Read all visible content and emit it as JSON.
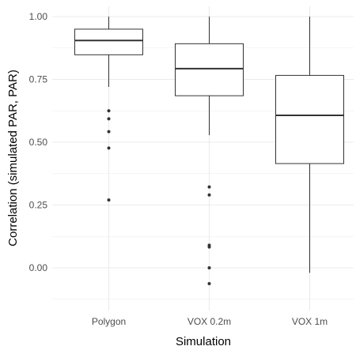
{
  "chart_data": {
    "type": "box",
    "title": "",
    "xlabel": "Simulation",
    "ylabel": "Correlation (simulated PAR, PAR)",
    "ylim": [
      -0.15,
      1.0
    ],
    "yticks": [
      "0.00",
      "0.25",
      "0.50",
      "0.75",
      "1.00"
    ],
    "ytick_values": [
      0,
      0.25,
      0.5,
      0.75,
      1.0
    ],
    "grid": true,
    "categories": [
      "Polygon",
      "VOX 0.2m",
      "VOX 1m"
    ],
    "boxes": [
      {
        "category": "Polygon",
        "whisker_low": 0.72,
        "q1": 0.848,
        "median": 0.905,
        "q3": 0.95,
        "whisker_high": 1.0,
        "outliers": [
          0.625,
          0.593,
          0.542,
          0.477,
          0.27
        ]
      },
      {
        "category": "VOX 0.2m",
        "whisker_low": 0.528,
        "q1": 0.685,
        "median": 0.793,
        "q3": 0.892,
        "whisker_high": 1.0,
        "outliers": [
          0.322,
          0.29,
          0.09,
          0.083,
          0.0,
          -0.063
        ]
      },
      {
        "category": "VOX 1m",
        "whisker_low": -0.02,
        "q1": 0.415,
        "median": 0.607,
        "q3": 0.766,
        "whisker_high": 1.0,
        "outliers": []
      }
    ]
  },
  "colors": {
    "background": "#ffffff",
    "gridline": "#ebebeb",
    "box_fill": "#ffffff",
    "box_stroke": "#333333",
    "tick_text": "#4d4d4d",
    "title_text": "#000000"
  }
}
